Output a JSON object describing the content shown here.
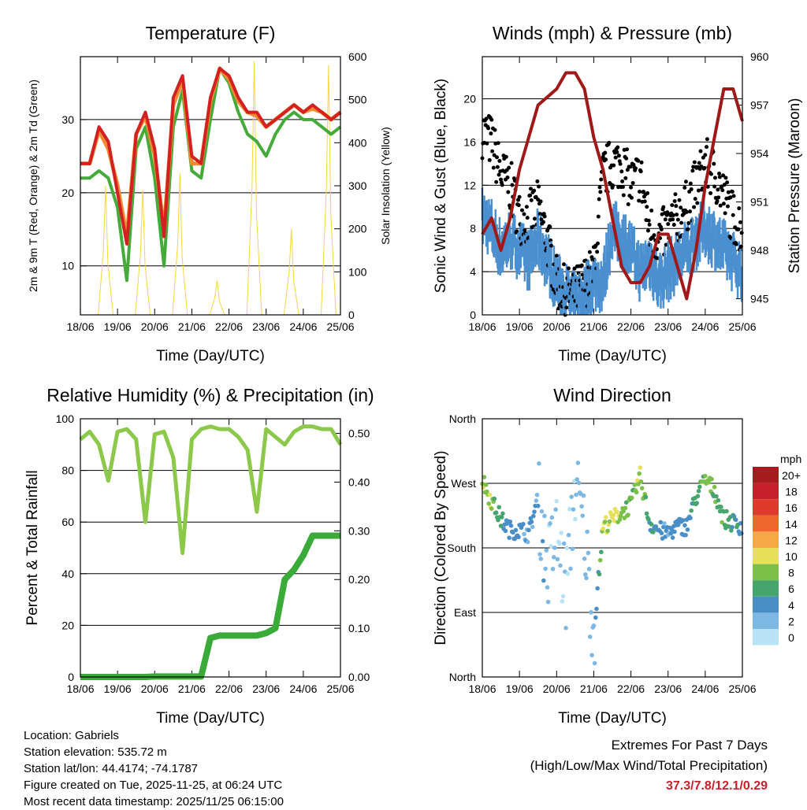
{
  "chart_data": [
    {
      "type": "line",
      "title": "Temperature (F)",
      "xlabel": "Time (Day/UTC)",
      "ylabel": "2m & 9m T (Red, Orange) & 2m Td (Green)",
      "y2label": "Solar Insolation (Yellow)",
      "xticks": [
        "18/06",
        "19/06",
        "20/06",
        "21/06",
        "22/06",
        "23/06",
        "24/06",
        "25/06"
      ],
      "ylim": [
        3.3,
        38.6
      ],
      "yticks": [
        10,
        20,
        30
      ],
      "y2lim": [
        0,
        600
      ],
      "y2ticks": [
        0,
        100,
        200,
        300,
        400,
        500,
        600
      ],
      "x_step_hours": 6,
      "series": [
        {
          "name": "2m T",
          "color": "#d42020",
          "values": [
            24,
            24,
            29,
            27,
            20,
            13,
            28,
            31,
            26,
            14,
            33,
            36,
            25,
            24,
            33,
            37,
            36,
            33,
            31,
            31,
            29,
            30,
            31,
            32,
            31,
            32,
            31,
            30,
            31
          ]
        },
        {
          "name": "9m T",
          "color": "#f08a30",
          "values": [
            24,
            24,
            28.5,
            26,
            21,
            14,
            28,
            30.5,
            25,
            15,
            32,
            35.5,
            24,
            24,
            32.5,
            37,
            35.5,
            32.5,
            31,
            30.5,
            29,
            30,
            31,
            32,
            31,
            31.5,
            31,
            30,
            31
          ]
        },
        {
          "name": "2m Td",
          "color": "#44aa3a",
          "values": [
            22,
            22,
            23,
            22,
            18,
            8,
            26,
            29,
            22,
            10,
            29,
            34,
            23,
            22,
            30,
            37,
            35,
            31,
            28,
            27,
            25,
            28,
            30,
            31,
            30,
            30,
            29,
            28,
            29
          ]
        },
        {
          "name": "Solar Insolation",
          "color": "#f5d640",
          "daily_peaks": [
            300,
            290,
            330,
            80,
            590,
            200,
            580
          ]
        }
      ]
    },
    {
      "type": "line",
      "title": "Winds (mph) & Pressure (mb)",
      "xlabel": "Time (Day/UTC)",
      "ylabel": "Sonic Wind & Gust (Blue, Black)",
      "y2label": "Station Pressure (Maroon)",
      "xticks": [
        "18/06",
        "19/06",
        "20/06",
        "21/06",
        "22/06",
        "23/06",
        "24/06",
        "25/06"
      ],
      "ylim": [
        0,
        23.9
      ],
      "yticks": [
        0,
        4,
        8,
        12,
        16,
        20
      ],
      "y2lim": [
        944,
        960
      ],
      "y2ticks": [
        945,
        948,
        951,
        954,
        957,
        960
      ],
      "x_step_hours": 6,
      "series": [
        {
          "name": "Sonic Wind",
          "color": "#4a90d0",
          "values": [
            9,
            8,
            6,
            7,
            6,
            5,
            7,
            5,
            3,
            2,
            1,
            2,
            3,
            3,
            8,
            7,
            6,
            4,
            5,
            3,
            4,
            5,
            6,
            7,
            8,
            7,
            6,
            5,
            4
          ]
        },
        {
          "name": "Gust",
          "color": "#000000",
          "values": [
            17,
            16,
            13,
            12,
            9,
            9,
            10,
            7,
            3,
            2,
            2,
            3,
            4,
            13,
            14,
            14,
            12,
            13,
            8,
            7,
            8,
            9,
            10,
            12,
            14,
            13,
            11,
            9,
            8
          ]
        },
        {
          "name": "Station Pressure",
          "color": "#a01818",
          "values": [
            949,
            950,
            948,
            950,
            953,
            955,
            957,
            957.5,
            958,
            959,
            959,
            958,
            955,
            953,
            950,
            947,
            946,
            946,
            947,
            949,
            949,
            947,
            945,
            948,
            952,
            955,
            958,
            958,
            956
          ]
        }
      ]
    },
    {
      "type": "line",
      "title": "Relative Humidity (%) & Precipitation (in)",
      "xlabel": "Time (Day/UTC)",
      "ylabel": "Percent & Total Rainfall",
      "xticks": [
        "18/06",
        "19/06",
        "20/06",
        "21/06",
        "22/06",
        "23/06",
        "24/06",
        "25/06"
      ],
      "ylim": [
        0,
        100
      ],
      "yticks": [
        0,
        20,
        40,
        60,
        80,
        100
      ],
      "y2lim": [
        0,
        0.53
      ],
      "y2ticks": [
        "0.00",
        "0.10",
        "0.20",
        "0.30",
        "0.40",
        "0.50"
      ],
      "x_step_hours": 6,
      "series": [
        {
          "name": "Relative Humidity",
          "color": "#8cc84a",
          "values": [
            92,
            95,
            90,
            76,
            95,
            96,
            92,
            60,
            94,
            95,
            85,
            48,
            92,
            96,
            97,
            96,
            96,
            93,
            88,
            64,
            96,
            93,
            90,
            95,
            97,
            97,
            96,
            96,
            90
          ]
        },
        {
          "name": "Total Precipitation",
          "color": "#3aaa38",
          "values": [
            0,
            0,
            0,
            0,
            0,
            0,
            0,
            0,
            0.001,
            0.001,
            0.001,
            0.001,
            0.001,
            0.001,
            0.08,
            0.085,
            0.085,
            0.085,
            0.085,
            0.085,
            0.09,
            0.1,
            0.2,
            0.22,
            0.25,
            0.29,
            0.29,
            0.29,
            0.29
          ]
        }
      ]
    },
    {
      "type": "scatter",
      "title": "Wind Direction",
      "xlabel": "Time (Day/UTC)",
      "ylabel": "Direction (Colored By Speed)",
      "xticks": [
        "18/06",
        "19/06",
        "20/06",
        "21/06",
        "22/06",
        "23/06",
        "24/06",
        "25/06"
      ],
      "ylim": [
        0,
        360
      ],
      "yticks": [
        "North",
        "East",
        "South",
        "West",
        "North"
      ],
      "x_step_hours": 6,
      "direction": [
        275,
        245,
        220,
        205,
        205,
        200,
        250,
        150,
        200,
        120,
        270,
        200,
        60,
        210,
        220,
        230,
        240,
        280,
        215,
        205,
        200,
        210,
        210,
        250,
        275,
        260,
        220,
        215,
        210
      ],
      "speed": [
        8,
        9,
        5,
        4,
        4,
        3,
        3,
        2,
        1,
        1,
        1,
        2,
        2,
        9,
        9,
        8,
        7,
        9,
        5,
        4,
        3,
        4,
        4,
        6,
        8,
        7,
        6,
        5,
        4
      ],
      "legend": {
        "title": "mph",
        "labels": [
          "20+",
          "18",
          "16",
          "14",
          "12",
          "10",
          "8",
          "6",
          "4",
          "2",
          "0"
        ],
        "colors": [
          "#a51b1e",
          "#c8202a",
          "#e03a2c",
          "#f0672c",
          "#f6a848",
          "#e8e058",
          "#7cc04a",
          "#46a56c",
          "#4a8ec8",
          "#7db8e4",
          "#b8e2f6"
        ]
      }
    }
  ],
  "info": [
    "Location: Gabriels",
    "Station elevation: 535.72 m",
    "Station lat/lon: 44.4174; -74.1787",
    "Figure created on Tue, 2025-11-25, at 06:24 UTC",
    "Most recent data timestamp: 2025/11/25 06:15:00"
  ],
  "extremes": {
    "title": "Extremes For Past 7 Days",
    "subtitle": "(High/Low/Max Wind/Total Precipitation)",
    "values": "37.3/7.8/12.1/0.29"
  }
}
